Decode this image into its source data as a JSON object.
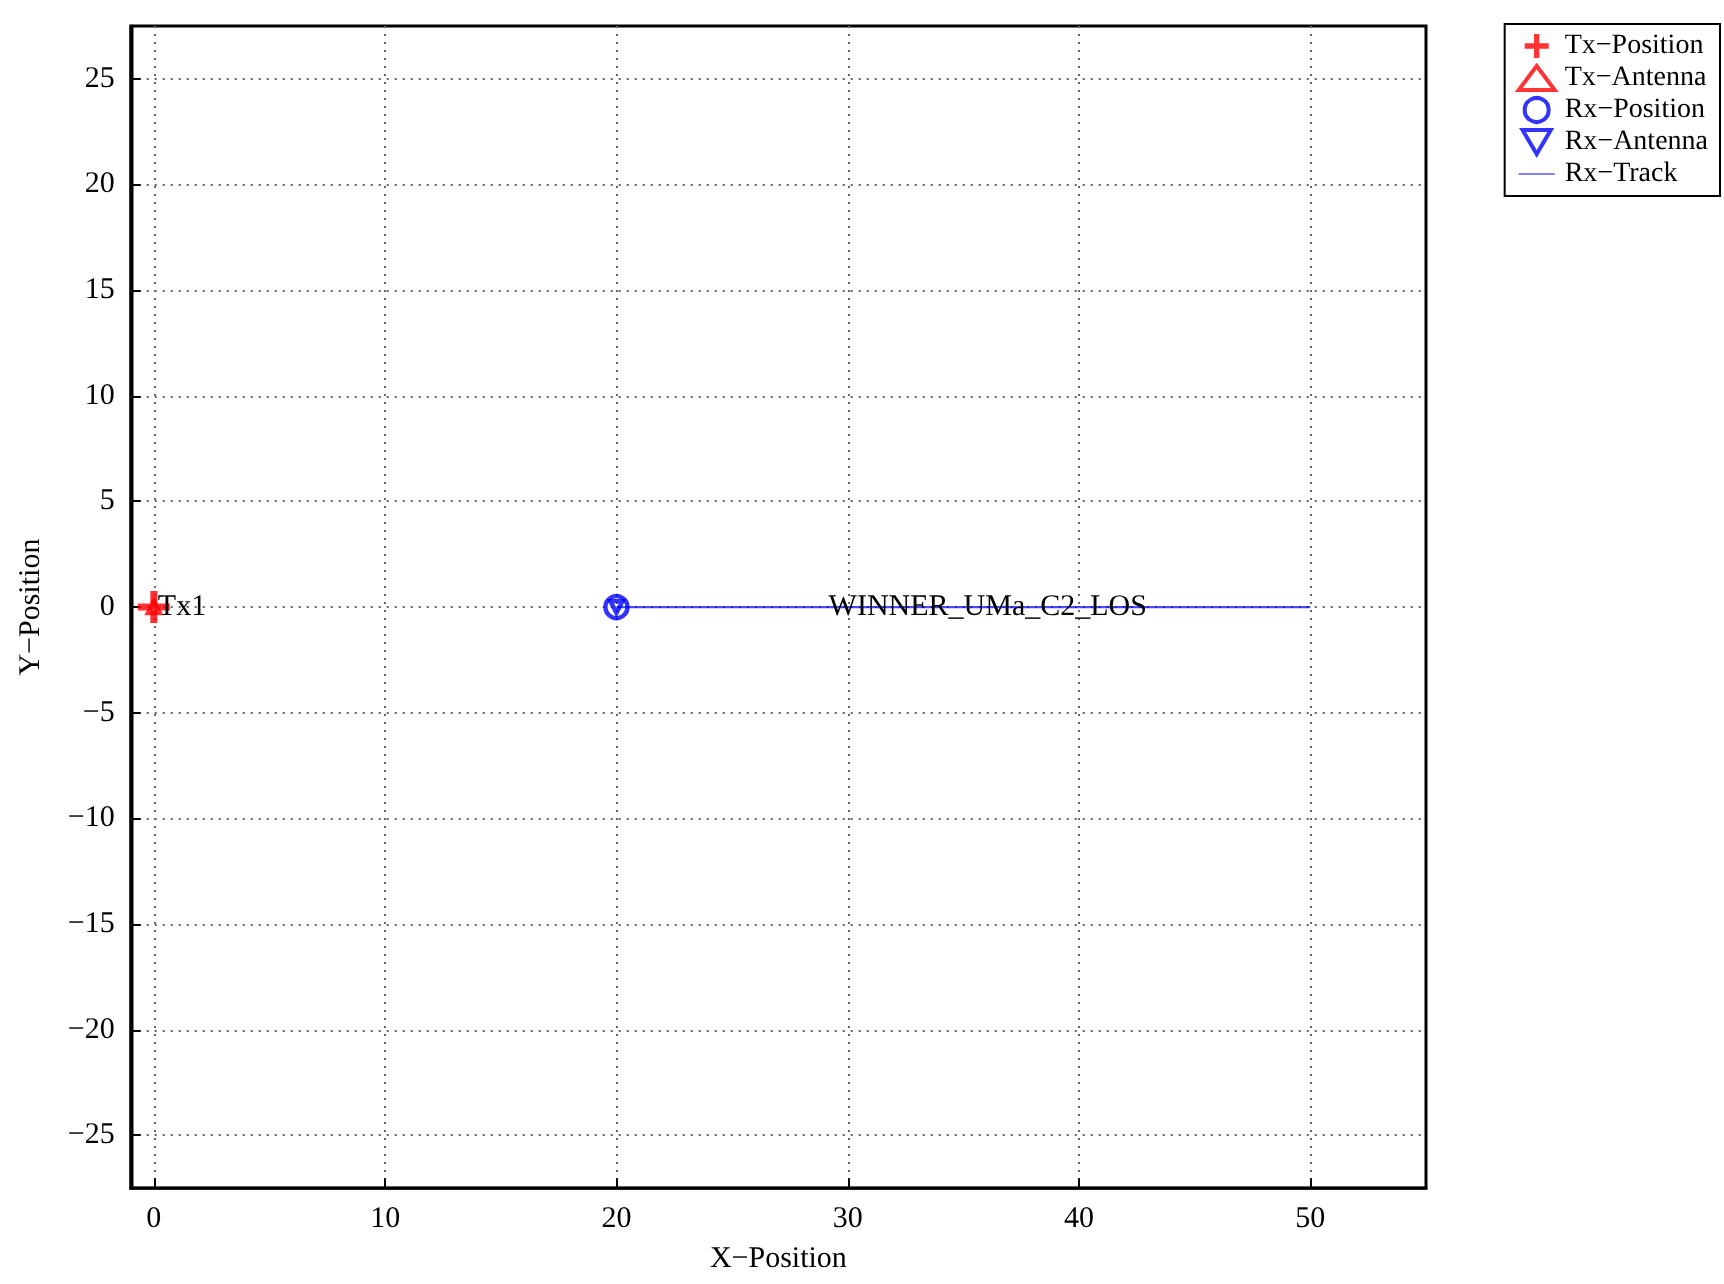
{
  "chart_data": {
    "type": "scatter",
    "xlabel": "X−Position",
    "ylabel": "Y−Position",
    "xlim": [
      -1,
      55
    ],
    "xticks": [
      0,
      10,
      20,
      30,
      40,
      50
    ],
    "ylim": [
      -27.5,
      27.5
    ],
    "yticks": [
      {
        "value": -25,
        "label": "−25"
      },
      {
        "value": -20,
        "label": "−20"
      },
      {
        "value": -15,
        "label": "−15"
      },
      {
        "value": -10,
        "label": "−10"
      },
      {
        "value": -5,
        "label": "−5"
      },
      0,
      5,
      10,
      15,
      20,
      25
    ],
    "grid": true,
    "legend": "top right",
    "series": [
      {
        "name": "Tx−Position",
        "marker": "cross",
        "color": "#ff0000",
        "x": [
          0
        ],
        "values": [
          0
        ]
      },
      {
        "name": "Tx−Antenna",
        "marker": "triangle",
        "color": "#ff0000",
        "x": [
          0
        ],
        "values": [
          0
        ]
      },
      {
        "name": "Rx−Position",
        "marker": "circle",
        "color": "#0000ff",
        "x": [
          20
        ],
        "values": [
          0
        ]
      },
      {
        "name": "Rx−Antenna",
        "marker": "triangle-down",
        "color": "#0000ff",
        "x": [
          20
        ],
        "values": [
          0
        ]
      },
      {
        "name": "Rx−Track",
        "type": "line",
        "marker": "none",
        "color": "#0000ff",
        "x": [
          20,
          50
        ],
        "values": [
          0,
          0
        ]
      }
    ],
    "annotations": [
      {
        "text": "Tx1",
        "x": 0,
        "y": 0
      },
      {
        "text": "WINNER_UMa_C2_LOS",
        "x": 29,
        "y": 0
      }
    ]
  }
}
